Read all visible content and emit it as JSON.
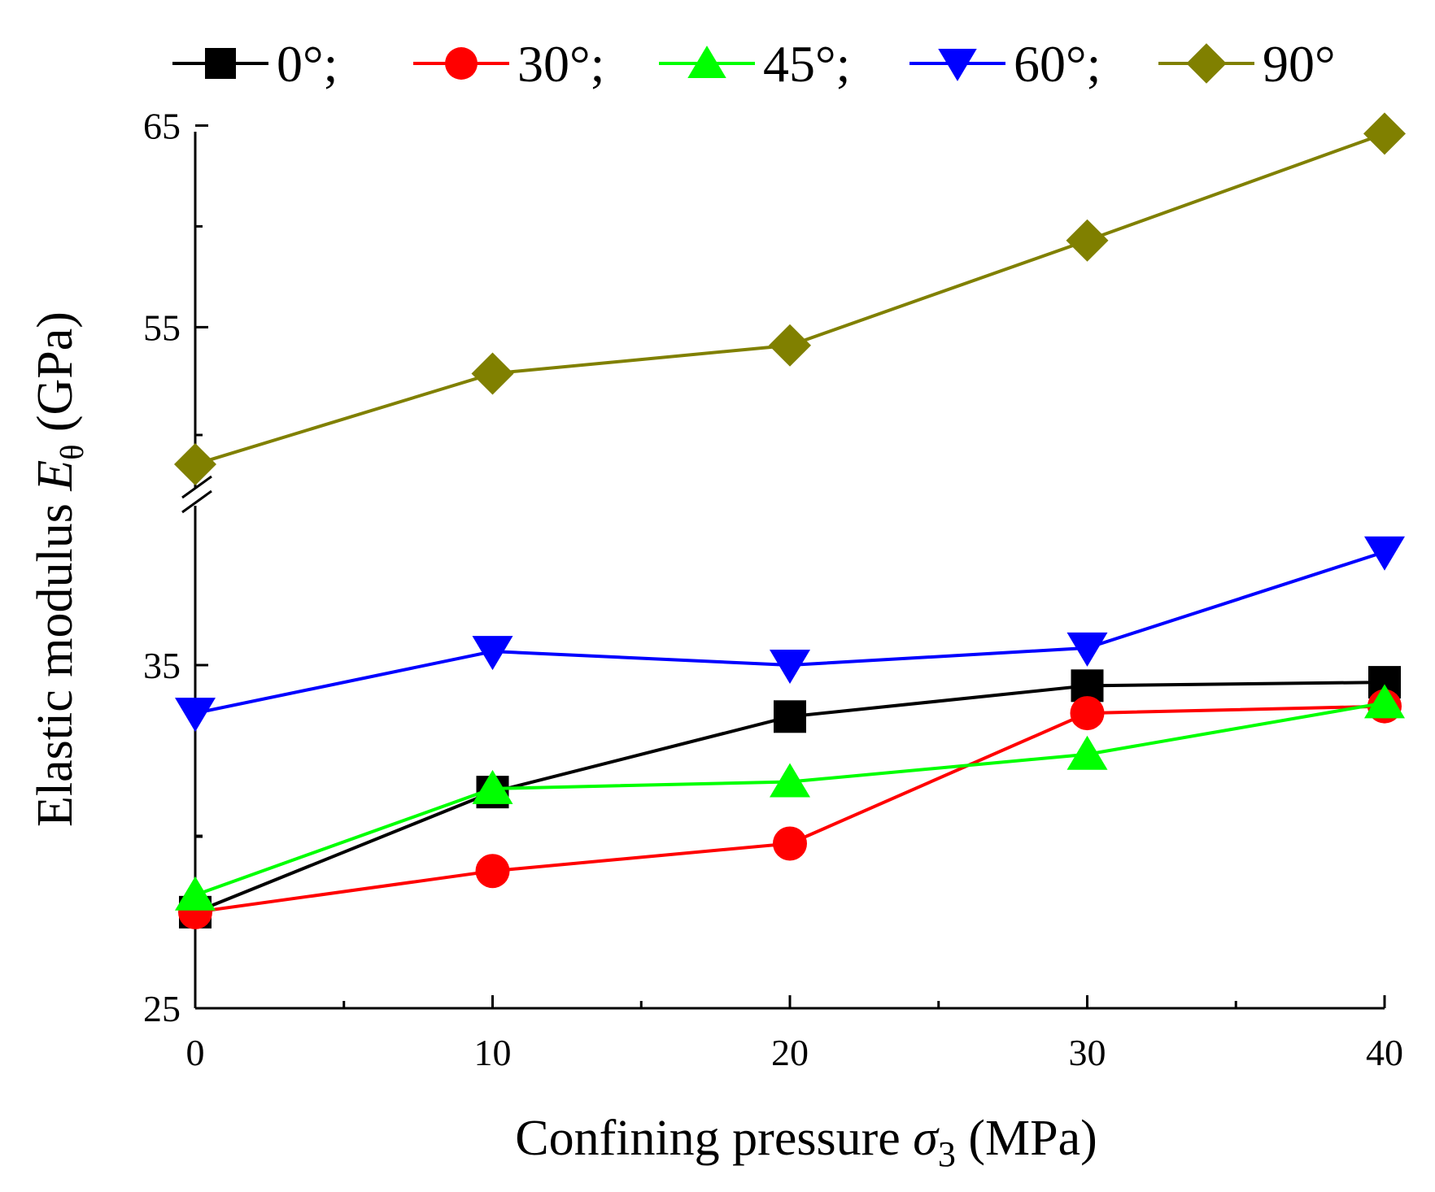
{
  "chart_data": {
    "type": "line",
    "title": "",
    "xlabel": {
      "prefix": "Confining pressure ",
      "symbol": "σ",
      "subscript": "3",
      "suffix": " (MPa)"
    },
    "ylabel": {
      "prefix": "Elastic modulus ",
      "symbol": "E",
      "subscript": "θ",
      "suffix": "  (GPa)"
    },
    "x": [
      0,
      10,
      20,
      30,
      40
    ],
    "xlim": [
      0,
      40
    ],
    "x_ticks": [
      "0",
      "10",
      "20",
      "30",
      "40"
    ],
    "y_ticks": [
      "25",
      "35",
      "55",
      "65"
    ],
    "y_axis_break": {
      "lower_segment": [
        25,
        35
      ],
      "upper_segment": [
        55,
        65
      ]
    },
    "legend_position": "top",
    "series": [
      {
        "name": "0°",
        "legend_label": "0°;",
        "color": "#000000",
        "marker": "square",
        "values": [
          27.8,
          31.3,
          33.5,
          34.4,
          34.5
        ]
      },
      {
        "name": "30°",
        "legend_label": "30°;",
        "color": "#ff0000",
        "marker": "circle",
        "values": [
          27.8,
          29.0,
          29.8,
          33.6,
          33.8
        ]
      },
      {
        "name": "45°",
        "legend_label": "45°;",
        "color": "#00ff00",
        "marker": "triangle-up",
        "values": [
          28.3,
          31.4,
          31.6,
          32.4,
          33.9
        ]
      },
      {
        "name": "60°",
        "legend_label": "60°;",
        "color": "#0000ff",
        "marker": "triangle-down",
        "values": [
          33.6,
          35.4,
          35.0,
          35.5,
          38.3
        ]
      },
      {
        "name": "90°",
        "legend_label": "90°",
        "color": "#808000",
        "marker": "diamond",
        "values": [
          48.2,
          52.7,
          54.1,
          59.3,
          64.6
        ]
      }
    ]
  }
}
